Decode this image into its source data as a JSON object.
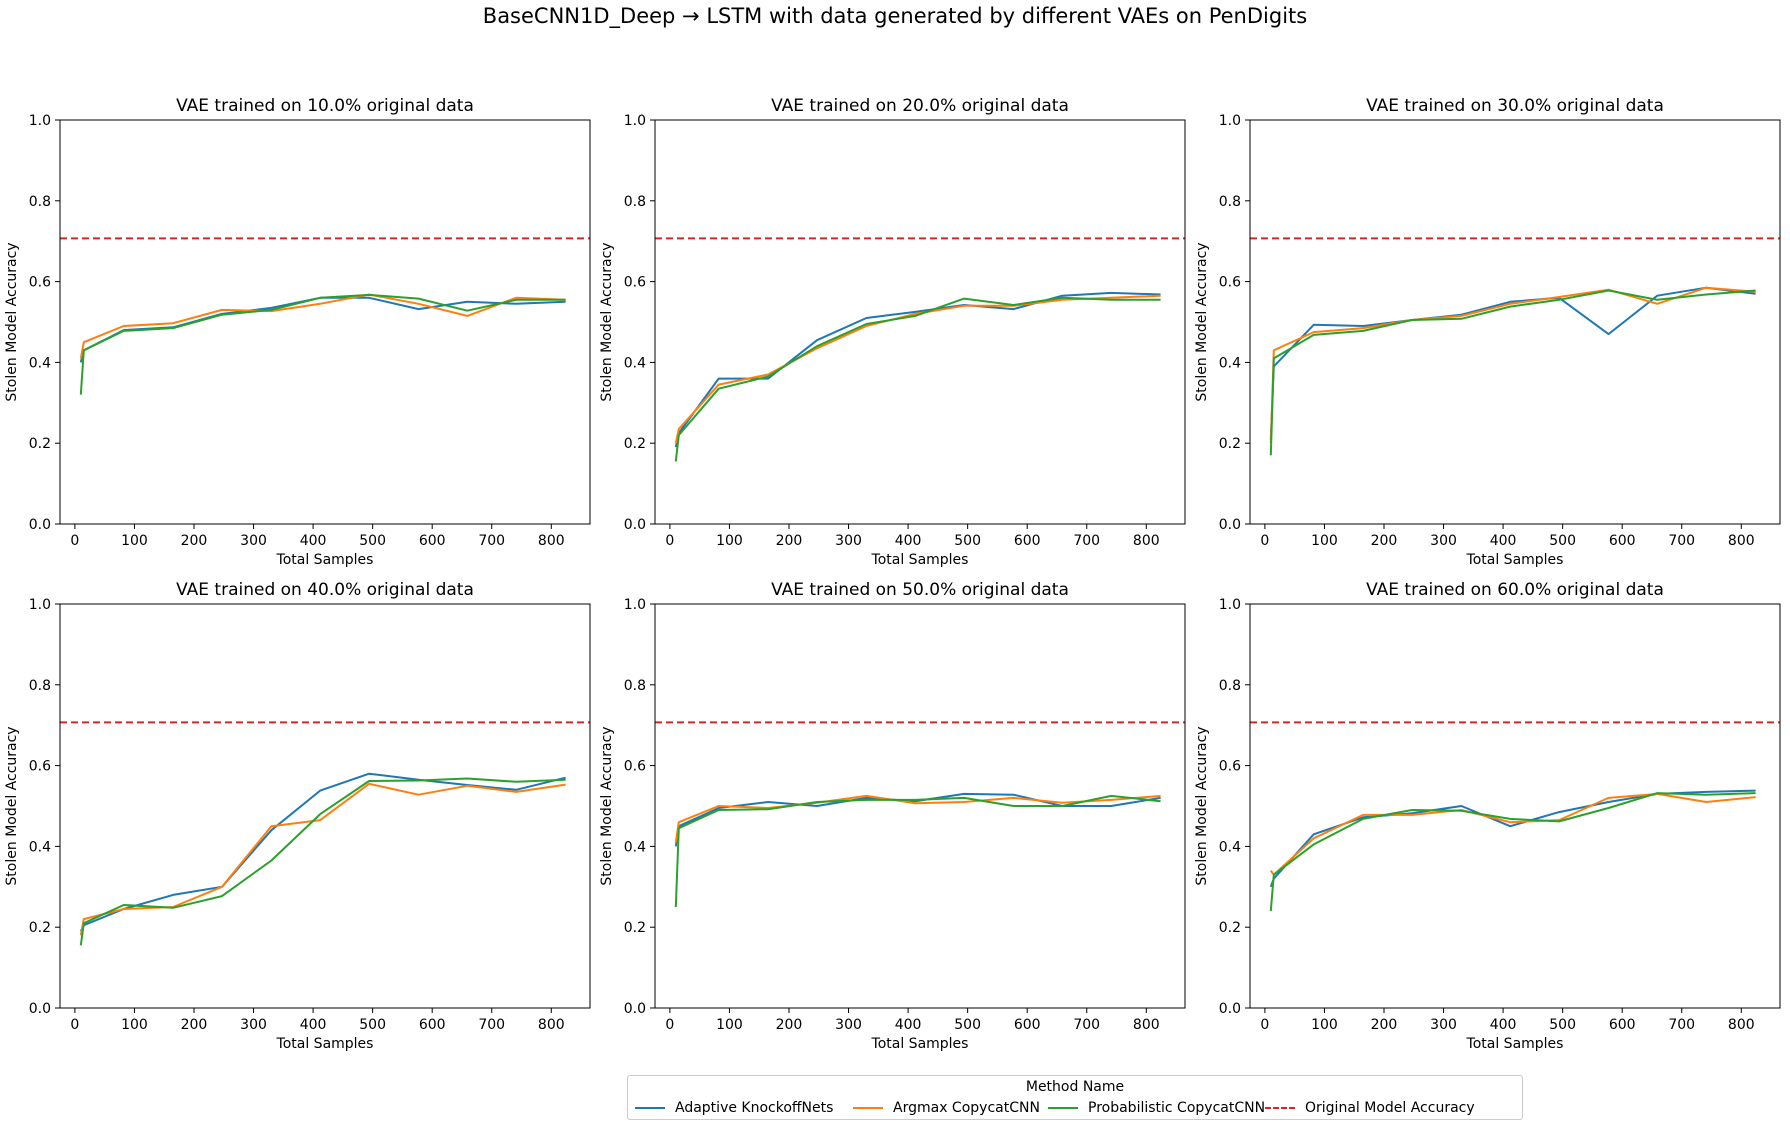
{
  "suptitle": "BaseCNN1D_Deep → LSTM with data generated by different VAEs on PenDigits",
  "colors": {
    "Adaptive KnockoffNets": "#1f77b4",
    "Argmax CopycatCNN": "#ff7f0e",
    "Probabilistic CopycatCNN": "#2ca02c",
    "Original Model Accuracy": "#d62728"
  },
  "legend": {
    "title": "Method Name",
    "items": [
      {
        "label": "Adaptive KnockoffNets",
        "style": "solid"
      },
      {
        "label": "Argmax CopycatCNN",
        "style": "solid"
      },
      {
        "label": "Probabilistic CopycatCNN",
        "style": "solid"
      },
      {
        "label": "Original Model Accuracy",
        "style": "dashed"
      }
    ],
    "placement": "bottom-center"
  },
  "chart_data": [
    {
      "type": "line",
      "title": "VAE trained on 10.0% original data",
      "xlabel": "Total Samples",
      "ylabel": "Stolen Model Accuracy",
      "xlim": [
        -25,
        865
      ],
      "ylim": [
        0,
        1.0
      ],
      "xticks": [
        0,
        100,
        200,
        300,
        400,
        500,
        600,
        700,
        800
      ],
      "yticks": [
        0.0,
        0.2,
        0.4,
        0.6,
        0.8,
        1.0
      ],
      "grid": false,
      "hline": {
        "name": "Original Model Accuracy",
        "y": 0.707
      },
      "x": [
        10,
        15,
        82,
        165,
        247,
        330,
        412,
        494,
        577,
        659,
        741,
        824
      ],
      "series": [
        {
          "name": "Adaptive KnockoffNets",
          "values": [
            0.4,
            0.43,
            0.48,
            0.487,
            0.52,
            0.535,
            0.56,
            0.56,
            0.532,
            0.55,
            0.545,
            0.55
          ]
        },
        {
          "name": "Argmax CopycatCNN",
          "values": [
            0.41,
            0.45,
            0.49,
            0.497,
            0.53,
            0.527,
            0.545,
            0.568,
            0.545,
            0.515,
            0.56,
            0.555
          ]
        },
        {
          "name": "Probabilistic CopycatCNN",
          "values": [
            0.32,
            0.43,
            0.478,
            0.485,
            0.518,
            0.53,
            0.56,
            0.567,
            0.558,
            0.528,
            0.555,
            0.555
          ]
        }
      ]
    },
    {
      "type": "line",
      "title": "VAE trained on 20.0% original data",
      "xlabel": "Total Samples",
      "ylabel": "Stolen Model Accuracy",
      "xlim": [
        -25,
        865
      ],
      "ylim": [
        0,
        1.0
      ],
      "xticks": [
        0,
        100,
        200,
        300,
        400,
        500,
        600,
        700,
        800
      ],
      "yticks": [
        0.0,
        0.2,
        0.4,
        0.6,
        0.8,
        1.0
      ],
      "grid": false,
      "hline": {
        "name": "Original Model Accuracy",
        "y": 0.707
      },
      "x": [
        10,
        15,
        82,
        165,
        247,
        330,
        412,
        494,
        577,
        659,
        741,
        824
      ],
      "series": [
        {
          "name": "Adaptive KnockoffNets",
          "values": [
            0.19,
            0.225,
            0.36,
            0.36,
            0.455,
            0.51,
            0.525,
            0.542,
            0.532,
            0.565,
            0.572,
            0.568
          ]
        },
        {
          "name": "Argmax CopycatCNN",
          "values": [
            0.2,
            0.235,
            0.345,
            0.37,
            0.435,
            0.49,
            0.52,
            0.54,
            0.54,
            0.555,
            0.56,
            0.565
          ]
        },
        {
          "name": "Probabilistic CopycatCNN",
          "values": [
            0.155,
            0.22,
            0.335,
            0.365,
            0.44,
            0.495,
            0.515,
            0.558,
            0.542,
            0.56,
            0.555,
            0.555
          ]
        }
      ]
    },
    {
      "type": "line",
      "title": "VAE trained on 30.0% original data",
      "xlabel": "Total Samples",
      "ylabel": "Stolen Model Accuracy",
      "xlim": [
        -25,
        865
      ],
      "ylim": [
        0,
        1.0
      ],
      "xticks": [
        0,
        100,
        200,
        300,
        400,
        500,
        600,
        700,
        800
      ],
      "yticks": [
        0.0,
        0.2,
        0.4,
        0.6,
        0.8,
        1.0
      ],
      "grid": false,
      "hline": {
        "name": "Original Model Accuracy",
        "y": 0.707
      },
      "x": [
        10,
        15,
        82,
        165,
        247,
        330,
        412,
        494,
        577,
        659,
        741,
        824
      ],
      "series": [
        {
          "name": "Adaptive KnockoffNets",
          "values": [
            0.21,
            0.39,
            0.493,
            0.49,
            0.505,
            0.518,
            0.55,
            0.56,
            0.47,
            0.565,
            0.585,
            0.57
          ]
        },
        {
          "name": "Argmax CopycatCNN",
          "values": [
            0.2,
            0.43,
            0.475,
            0.485,
            0.505,
            0.515,
            0.545,
            0.562,
            0.58,
            0.545,
            0.585,
            0.575
          ]
        },
        {
          "name": "Probabilistic CopycatCNN",
          "values": [
            0.17,
            0.41,
            0.468,
            0.478,
            0.505,
            0.508,
            0.538,
            0.555,
            0.578,
            0.555,
            0.568,
            0.578
          ]
        }
      ]
    },
    {
      "type": "line",
      "title": "VAE trained on 40.0% original data",
      "xlabel": "Total Samples",
      "ylabel": "Stolen Model Accuracy",
      "xlim": [
        -25,
        865
      ],
      "ylim": [
        0,
        1.0
      ],
      "xticks": [
        0,
        100,
        200,
        300,
        400,
        500,
        600,
        700,
        800
      ],
      "yticks": [
        0.0,
        0.2,
        0.4,
        0.6,
        0.8,
        1.0
      ],
      "grid": false,
      "hline": {
        "name": "Original Model Accuracy",
        "y": 0.707
      },
      "x": [
        10,
        15,
        82,
        165,
        247,
        330,
        412,
        494,
        577,
        659,
        741,
        824
      ],
      "series": [
        {
          "name": "Adaptive KnockoffNets",
          "values": [
            0.19,
            0.205,
            0.245,
            0.28,
            0.3,
            0.44,
            0.538,
            0.58,
            0.565,
            0.552,
            0.54,
            0.57
          ]
        },
        {
          "name": "Argmax CopycatCNN",
          "values": [
            0.18,
            0.22,
            0.245,
            0.25,
            0.3,
            0.45,
            0.465,
            0.555,
            0.528,
            0.55,
            0.535,
            0.553
          ]
        },
        {
          "name": "Probabilistic CopycatCNN",
          "values": [
            0.155,
            0.21,
            0.255,
            0.248,
            0.277,
            0.365,
            0.48,
            0.562,
            0.563,
            0.568,
            0.56,
            0.565
          ]
        }
      ]
    },
    {
      "type": "line",
      "title": "VAE trained on 50.0% original data",
      "xlabel": "Total Samples",
      "ylabel": "Stolen Model Accuracy",
      "xlim": [
        -25,
        865
      ],
      "ylim": [
        0,
        1.0
      ],
      "xticks": [
        0,
        100,
        200,
        300,
        400,
        500,
        600,
        700,
        800
      ],
      "yticks": [
        0.0,
        0.2,
        0.4,
        0.6,
        0.8,
        1.0
      ],
      "grid": false,
      "hline": {
        "name": "Original Model Accuracy",
        "y": 0.707
      },
      "x": [
        10,
        15,
        82,
        165,
        247,
        330,
        412,
        494,
        577,
        659,
        741,
        824
      ],
      "series": [
        {
          "name": "Adaptive KnockoffNets",
          "values": [
            0.4,
            0.45,
            0.495,
            0.51,
            0.5,
            0.52,
            0.512,
            0.53,
            0.528,
            0.5,
            0.5,
            0.52
          ]
        },
        {
          "name": "Argmax CopycatCNN",
          "values": [
            0.41,
            0.46,
            0.5,
            0.495,
            0.508,
            0.525,
            0.507,
            0.51,
            0.52,
            0.508,
            0.515,
            0.525
          ]
        },
        {
          "name": "Probabilistic CopycatCNN",
          "values": [
            0.25,
            0.445,
            0.49,
            0.492,
            0.51,
            0.515,
            0.515,
            0.52,
            0.5,
            0.5,
            0.525,
            0.512
          ]
        }
      ]
    },
    {
      "type": "line",
      "title": "VAE trained on 60.0% original data",
      "xlabel": "Total Samples",
      "ylabel": "Stolen Model Accuracy",
      "xlim": [
        -25,
        865
      ],
      "ylim": [
        0,
        1.0
      ],
      "xticks": [
        0,
        100,
        200,
        300,
        400,
        500,
        600,
        700,
        800
      ],
      "yticks": [
        0.0,
        0.2,
        0.4,
        0.6,
        0.8,
        1.0
      ],
      "grid": false,
      "hline": {
        "name": "Original Model Accuracy",
        "y": 0.707
      },
      "x": [
        10,
        15,
        82,
        165,
        247,
        330,
        412,
        494,
        577,
        659,
        741,
        824
      ],
      "series": [
        {
          "name": "Adaptive KnockoffNets",
          "values": [
            0.3,
            0.32,
            0.43,
            0.472,
            0.482,
            0.5,
            0.45,
            0.485,
            0.51,
            0.53,
            0.535,
            0.538
          ]
        },
        {
          "name": "Argmax CopycatCNN",
          "values": [
            0.34,
            0.33,
            0.42,
            0.478,
            0.478,
            0.49,
            0.46,
            0.465,
            0.52,
            0.53,
            0.51,
            0.522
          ]
        },
        {
          "name": "Probabilistic CopycatCNN",
          "values": [
            0.24,
            0.33,
            0.405,
            0.468,
            0.49,
            0.488,
            0.468,
            0.462,
            0.495,
            0.532,
            0.528,
            0.532
          ]
        }
      ]
    }
  ]
}
